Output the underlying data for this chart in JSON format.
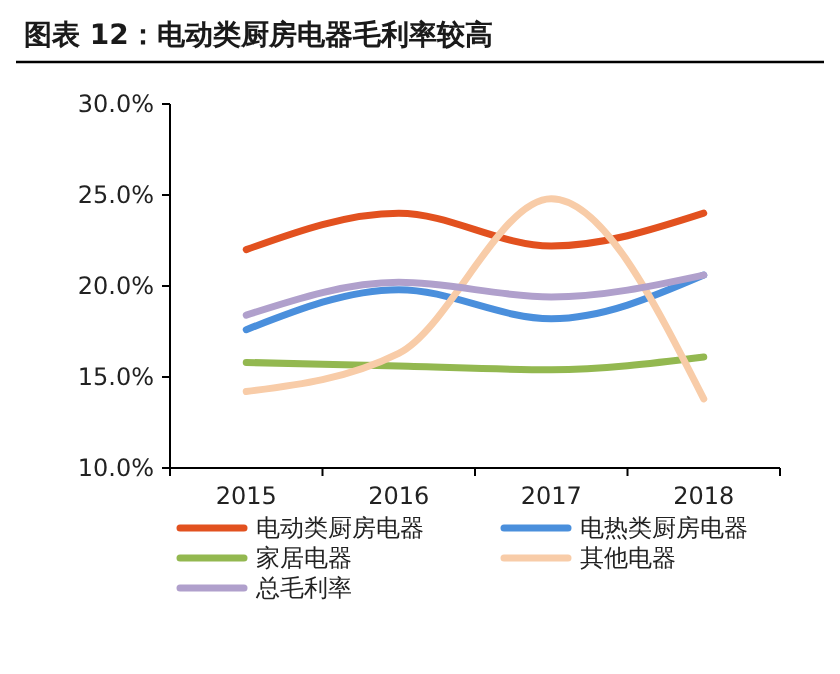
{
  "chart_data": {
    "type": "line",
    "title": "图表 12：电动类厨房电器毛利率较高",
    "categories": [
      "2015",
      "2016",
      "2017",
      "2018"
    ],
    "series": [
      {
        "name": "电动类厨房电器",
        "color": "#e2511f",
        "values": [
          22.0,
          24.0,
          22.2,
          24.0
        ]
      },
      {
        "name": "电热类厨房电器",
        "color": "#4a8fdc",
        "values": [
          17.6,
          19.8,
          18.2,
          20.6
        ]
      },
      {
        "name": "家居电器",
        "color": "#93b850",
        "values": [
          15.8,
          15.6,
          15.4,
          16.1
        ]
      },
      {
        "name": "其他电器",
        "color": "#f8cca8",
        "values": [
          14.2,
          16.3,
          24.8,
          13.8
        ]
      },
      {
        "name": "总毛利率",
        "color": "#b0a0cc",
        "values": [
          18.4,
          20.2,
          19.4,
          20.6
        ]
      }
    ],
    "ylim": [
      10,
      30
    ],
    "yticks": [
      {
        "value": 10,
        "label": "10.0%"
      },
      {
        "value": 15,
        "label": "15.0%"
      },
      {
        "value": 20,
        "label": "20.0%"
      },
      {
        "value": 25,
        "label": "25.0%"
      },
      {
        "value": 30,
        "label": "30.0%"
      }
    ],
    "grid": false,
    "legend": "bottom",
    "marker": "none",
    "line_style": "solid"
  }
}
